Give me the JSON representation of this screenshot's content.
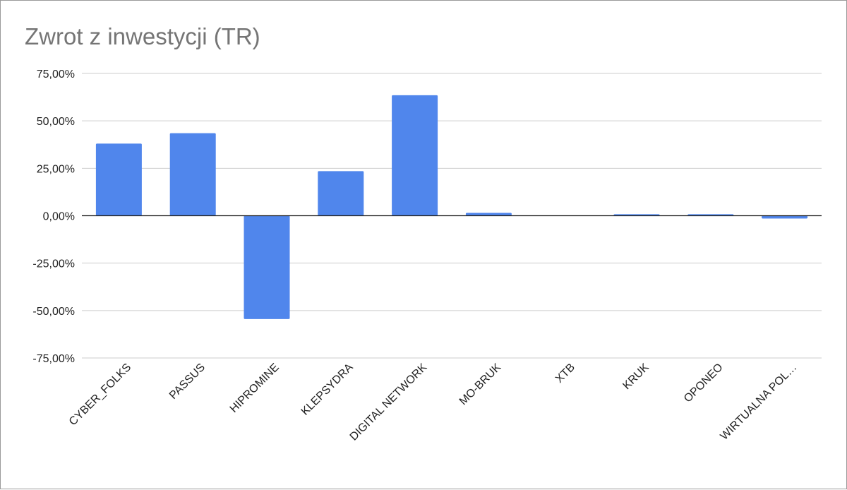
{
  "chart_data": {
    "type": "bar",
    "title": "Zwrot z inwestycji (TR)",
    "xlabel": "",
    "ylabel": "",
    "categories": [
      "CYBER_FOLKS",
      "PASSUS",
      "HIPROMINE",
      "KLEPSYDRA",
      "DIGITAL NETWORK",
      "MO-BRUK",
      "XTB",
      "KRUK",
      "OPONEO",
      "WIRTUALNA POL…"
    ],
    "values": [
      38.0,
      43.5,
      -54.5,
      23.5,
      63.5,
      1.5,
      0.2,
      0.8,
      0.8,
      -1.5
    ],
    "ylim": [
      -75,
      75
    ],
    "yticks": [
      75,
      50,
      25,
      0,
      -25,
      -50,
      -75
    ],
    "ytick_labels": [
      "75,00%",
      "50,00%",
      "25,00%",
      "0,00%",
      "-25,00%",
      "-50,00%",
      "-75,00%"
    ],
    "grid": true,
    "legend": "none",
    "bar_color": "#5086ec"
  }
}
